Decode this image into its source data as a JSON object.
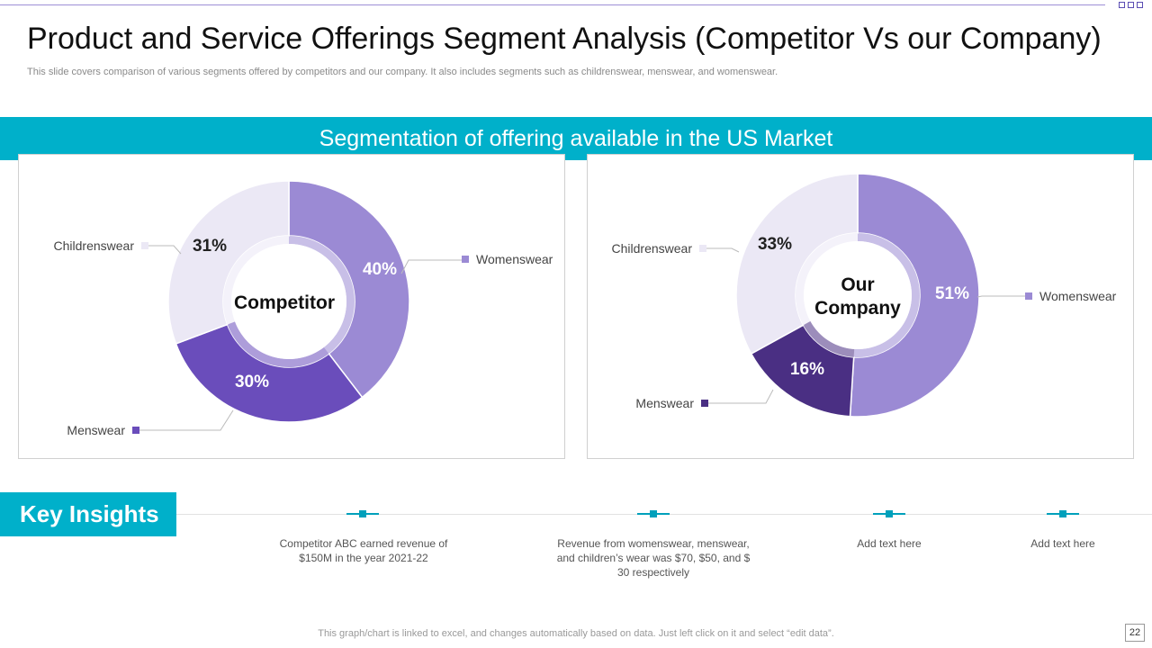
{
  "header": {
    "title": "Product and Service Offerings Segment Analysis (Competitor Vs our Company)",
    "subtitle": "This slide covers comparison of various segments offered by competitors and our company. It also includes segments such as childrenswear, menswear, and womenswear."
  },
  "banner": {
    "text": "Segmentation of offering available in the US Market"
  },
  "colors": {
    "womenswear": "#9b8ad4",
    "menswear_competitor": "#6a4dbb",
    "menswear_company": "#4a2f83",
    "childrenswear": "#ebe8f5",
    "accent": "#00b0ca"
  },
  "chart_data": [
    {
      "type": "pie",
      "center_label": "Competitor",
      "series": [
        {
          "name": "Womenswear",
          "value": 40,
          "label": "40%"
        },
        {
          "name": "Menswear",
          "value": 30,
          "label": "30%"
        },
        {
          "name": "Childrenswear",
          "value": 31,
          "label": "31%"
        }
      ]
    },
    {
      "type": "pie",
      "center_label": "Our Company",
      "series": [
        {
          "name": "Womenswear",
          "value": 51,
          "label": "51%"
        },
        {
          "name": "Menswear",
          "value": 16,
          "label": "16%"
        },
        {
          "name": "Childrenswear",
          "value": 33,
          "label": "33%"
        }
      ]
    }
  ],
  "insights": {
    "heading": "Key Insights",
    "items": [
      "Competitor ABC earned revenue  of $150M in the year 2021-22",
      "Revenue  from womenswear, menswear, and children’s wear was $70, $50, and $ 30  respectively",
      "Add text here",
      "Add text here"
    ]
  },
  "footer": {
    "note": "This graph/chart is linked to excel,  and changes automatically based on data. Just left click on it and select “edit data”.",
    "page": "22"
  }
}
